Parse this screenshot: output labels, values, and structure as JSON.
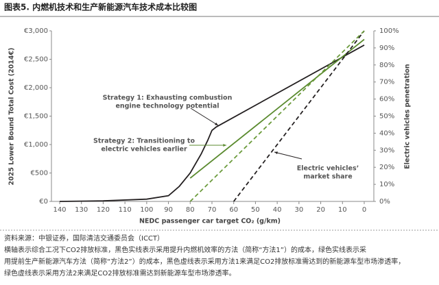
{
  "chart_data": {
    "type": "line",
    "title": "图表5. 内燃机技术和生产新能源汽车技术成本比较图",
    "xlabel": "NEDC passenger car target CO₂ (g/km)",
    "ylabel": "2025 Lower Bound Total Cost (2014€)",
    "y2label": "Electric vehicles penetration",
    "xlim": [
      140,
      0
    ],
    "xticks": [
      140,
      130,
      120,
      110,
      100,
      90,
      80,
      70,
      60,
      50,
      40,
      30,
      20,
      10,
      0
    ],
    "ylim": [
      0,
      3000
    ],
    "yticks": [
      {
        "value": 0,
        "label": "€0"
      },
      {
        "value": 500,
        "label": "€500"
      },
      {
        "value": 1000,
        "label": "€1,000"
      },
      {
        "value": 1500,
        "label": "€1,500"
      },
      {
        "value": 2000,
        "label": "€2,000"
      },
      {
        "value": 2500,
        "label": "€2,500"
      },
      {
        "value": 3000,
        "label": "€3,000"
      }
    ],
    "y2lim": [
      0,
      100
    ],
    "y2ticks": [
      {
        "value": 0,
        "label": "0%"
      },
      {
        "value": 10,
        "label": "10%"
      },
      {
        "value": 20,
        "label": "20%"
      },
      {
        "value": 30,
        "label": "30%"
      },
      {
        "value": 40,
        "label": "40%"
      },
      {
        "value": 50,
        "label": "50%"
      },
      {
        "value": 60,
        "label": "60%"
      },
      {
        "value": 70,
        "label": "70%"
      },
      {
        "value": 80,
        "label": "80%"
      },
      {
        "value": 90,
        "label": "90%"
      },
      {
        "value": 100,
        "label": "100%"
      }
    ],
    "series": [
      {
        "color": "#231f20",
        "dash": false,
        "x": [
          140,
          120,
          100,
          90,
          85,
          80,
          75,
          72,
          70,
          68,
          0
        ],
        "values": [
          0,
          10,
          40,
          100,
          265,
          500,
          830,
          1070,
          1250,
          1310,
          2750
        ]
      },
      {
        "color": "#5a8a2e",
        "dash": false,
        "x": [
          80,
          0
        ],
        "values": [
          410,
          2850
        ]
      },
      {
        "color": "#231f20",
        "dash": true,
        "axis": "y2",
        "x": [
          60,
          0
        ],
        "values": [
          0,
          100
        ]
      },
      {
        "color": "#6a9a3a",
        "dash": true,
        "axis": "y2",
        "x": [
          80,
          0
        ],
        "values": [
          0,
          100
        ]
      }
    ],
    "annotations": [
      {
        "lines": [
          "Strategy 1: Exhausting combustion",
          "engine technology potential"
        ],
        "color": "#231f20"
      },
      {
        "lines": [
          "Strategy 2: Transitioning to",
          "electric vehicles earlier"
        ],
        "color": "#5a8a2e"
      },
      {
        "lines": [
          "Electric vehicles’",
          "market share"
        ],
        "color": "#231f20"
      }
    ],
    "notes": [
      "资料来源：中银证券，国际清洁交通委员会（ICCT）",
      "横轴表示综合工况下CO2排放标准，黑色实线表示采用提升内燃机效率的方法（简称“方法1”）的成本，绿色实线表示采",
      "用提前生产新能源汽车方法（简称“方法2”）的成本，黑色虚线表示采用方法1来满足CO2排放标准需达到的新能源车型市场渗透率，",
      "绿色虚线表示采用方法2来满足CO2排放标准需达到新能源车型市场渗透率。"
    ]
  }
}
